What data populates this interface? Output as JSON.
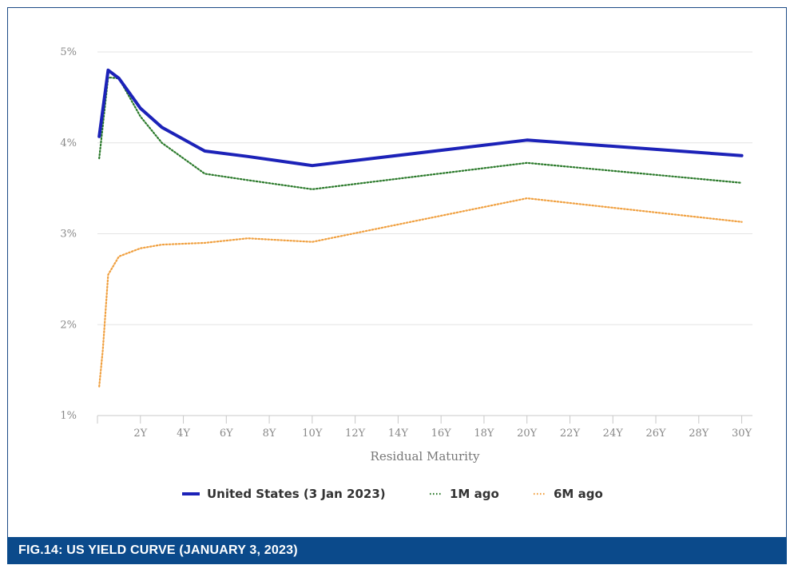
{
  "caption": "FIG.14: US YIELD CURVE (JANUARY 3, 2023)",
  "chart_data": {
    "type": "line",
    "title": "",
    "xlabel": "Residual Maturity",
    "ylabel": "",
    "xlim": [
      0,
      30.5
    ],
    "ylim": [
      1,
      5
    ],
    "y_ticks": [
      1,
      2,
      3,
      4,
      5
    ],
    "y_tick_labels": [
      "1%",
      "2%",
      "3%",
      "4%",
      "5%"
    ],
    "x_ticks": [
      2,
      4,
      6,
      8,
      10,
      12,
      14,
      16,
      18,
      20,
      22,
      24,
      26,
      28,
      30
    ],
    "x_tick_labels": [
      "2Y",
      "4Y",
      "6Y",
      "8Y",
      "10Y",
      "12Y",
      "14Y",
      "16Y",
      "18Y",
      "20Y",
      "22Y",
      "24Y",
      "26Y",
      "28Y",
      "30Y"
    ],
    "legend_position": "bottom-center",
    "series": [
      {
        "name": "United States (3 Jan 2023)",
        "color": "#1c22b8",
        "style": "solid",
        "x": [
          0.08,
          0.5,
          1,
          2,
          3,
          5,
          7,
          10,
          20,
          30
        ],
        "y": [
          4.07,
          4.8,
          4.71,
          4.38,
          4.17,
          3.91,
          3.85,
          3.75,
          4.03,
          3.86
        ]
      },
      {
        "name": "1M ago",
        "color": "#2b7a2b",
        "style": "dotted",
        "x": [
          0.08,
          0.5,
          1,
          2,
          3,
          5,
          7,
          10,
          20,
          30
        ],
        "y": [
          3.83,
          4.72,
          4.71,
          4.29,
          4.0,
          3.66,
          3.59,
          3.49,
          3.78,
          3.56
        ]
      },
      {
        "name": "6M ago",
        "color": "#f0a040",
        "style": "dotted",
        "x": [
          0.08,
          0.25,
          0.5,
          1,
          2,
          3,
          5,
          7,
          10,
          20,
          30
        ],
        "y": [
          1.32,
          1.72,
          2.55,
          2.75,
          2.84,
          2.88,
          2.9,
          2.95,
          2.91,
          3.39,
          3.13
        ]
      }
    ]
  }
}
